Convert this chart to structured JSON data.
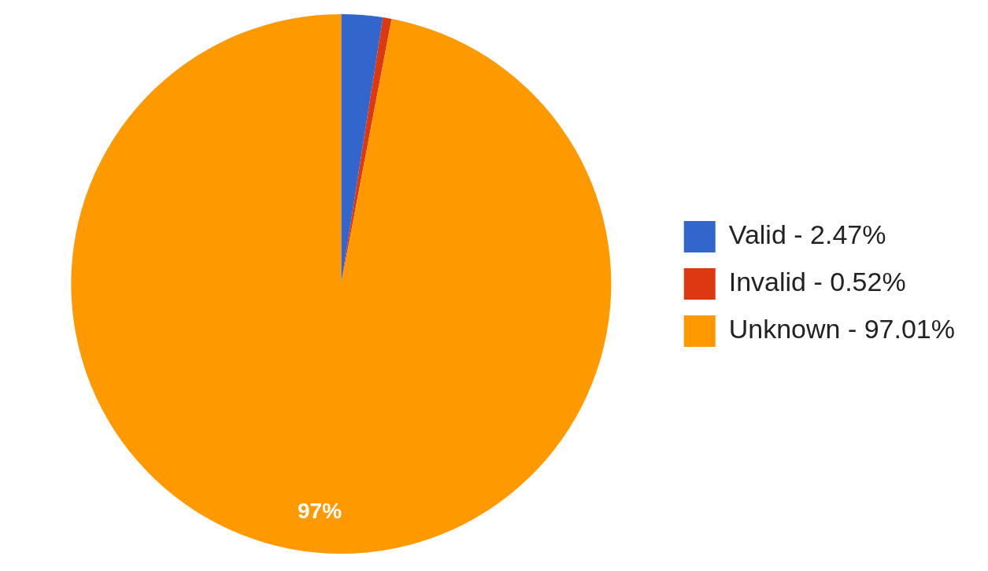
{
  "chart_data": {
    "type": "pie",
    "categories": [
      "Valid - 2.47%",
      "Invalid - 0.52%",
      "Unknown - 97.01%"
    ],
    "values": [
      2.47,
      0.52,
      97.01
    ],
    "colors": [
      "#3366cc",
      "#dc3912",
      "#ff9900"
    ],
    "value_labels": [
      null,
      null,
      "97%"
    ],
    "legend": "right"
  }
}
